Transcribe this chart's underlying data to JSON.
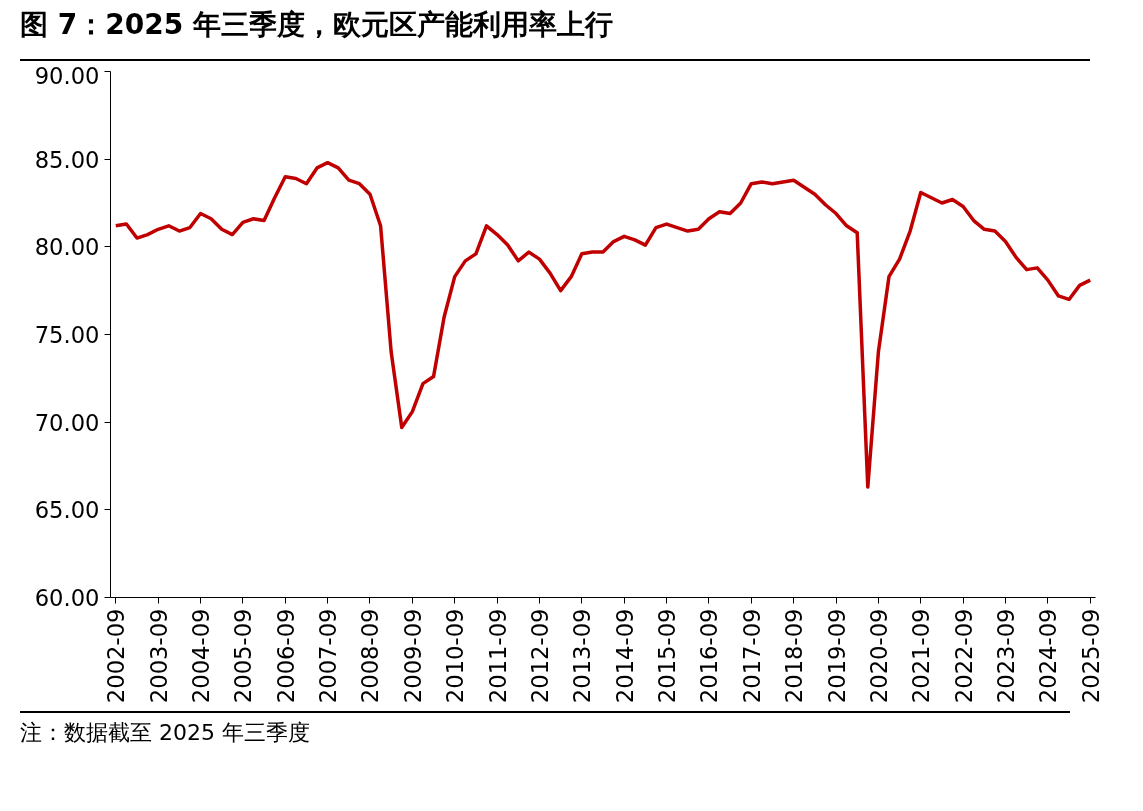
{
  "chart_data": {
    "type": "line",
    "title": "图 7：2025 年三季度，欧元区产能利用率上行",
    "categories": [
      "2002-09",
      null,
      null,
      null,
      "2003-09",
      null,
      null,
      null,
      "2004-09",
      null,
      null,
      null,
      "2005-09",
      null,
      null,
      null,
      "2006-09",
      null,
      null,
      null,
      "2007-09",
      null,
      null,
      null,
      "2008-09",
      null,
      null,
      null,
      "2009-09",
      null,
      null,
      null,
      "2010-09",
      null,
      null,
      null,
      "2011-09",
      null,
      null,
      null,
      "2012-09",
      null,
      null,
      null,
      "2013-09",
      null,
      null,
      null,
      "2014-09",
      null,
      null,
      null,
      "2015-09",
      null,
      null,
      null,
      "2016-09",
      null,
      null,
      null,
      "2017-09",
      null,
      null,
      null,
      "2018-09",
      null,
      null,
      null,
      "2019-09",
      null,
      null,
      null,
      "2020-09",
      null,
      null,
      null,
      "2021-09",
      null,
      null,
      null,
      "2022-09",
      null,
      null,
      null,
      "2023-09",
      null,
      null,
      null,
      "2024-09",
      null,
      null,
      null,
      "2025-09"
    ],
    "series": [
      {
        "color": "#c00000",
        "values": [
          81.2,
          81.3,
          80.5,
          80.7,
          81.0,
          81.2,
          80.9,
          81.1,
          81.9,
          81.6,
          81.0,
          80.7,
          81.4,
          81.6,
          81.5,
          82.8,
          84.0,
          83.9,
          83.6,
          84.5,
          84.8,
          84.5,
          83.8,
          83.6,
          83.0,
          81.2,
          74.0,
          69.7,
          70.6,
          72.2,
          72.6,
          76.0,
          78.3,
          79.2,
          79.6,
          81.2,
          80.7,
          80.1,
          79.2,
          79.7,
          79.3,
          78.5,
          77.5,
          78.3,
          79.6,
          79.7,
          79.7,
          80.3,
          80.6,
          80.4,
          80.1,
          81.1,
          81.3,
          81.1,
          80.9,
          81.0,
          81.6,
          82.0,
          81.9,
          82.5,
          83.6,
          83.7,
          83.6,
          83.7,
          83.8,
          83.4,
          83.0,
          82.4,
          81.9,
          81.2,
          80.8,
          66.3,
          74.0,
          78.3,
          79.3,
          80.9,
          83.1,
          82.8,
          82.5,
          82.7,
          82.3,
          81.5,
          81.0,
          80.9,
          80.3,
          79.4,
          78.7,
          78.8,
          78.1,
          77.2,
          77.0,
          77.8,
          78.1
        ]
      }
    ],
    "ylim": [
      60,
      90
    ],
    "yticks": [
      {
        "value": 60,
        "label": "60.00"
      },
      {
        "value": 65,
        "label": "65.00"
      },
      {
        "value": 70,
        "label": "70.00"
      },
      {
        "value": 75,
        "label": "75.00"
      },
      {
        "value": 80,
        "label": "80.00"
      },
      {
        "value": 85,
        "label": "85.00"
      },
      {
        "value": 90,
        "label": "90.00"
      }
    ],
    "grid": false,
    "line_style": "solid",
    "annotations": [
      "注：数据截至 2025 年三季度"
    ]
  }
}
